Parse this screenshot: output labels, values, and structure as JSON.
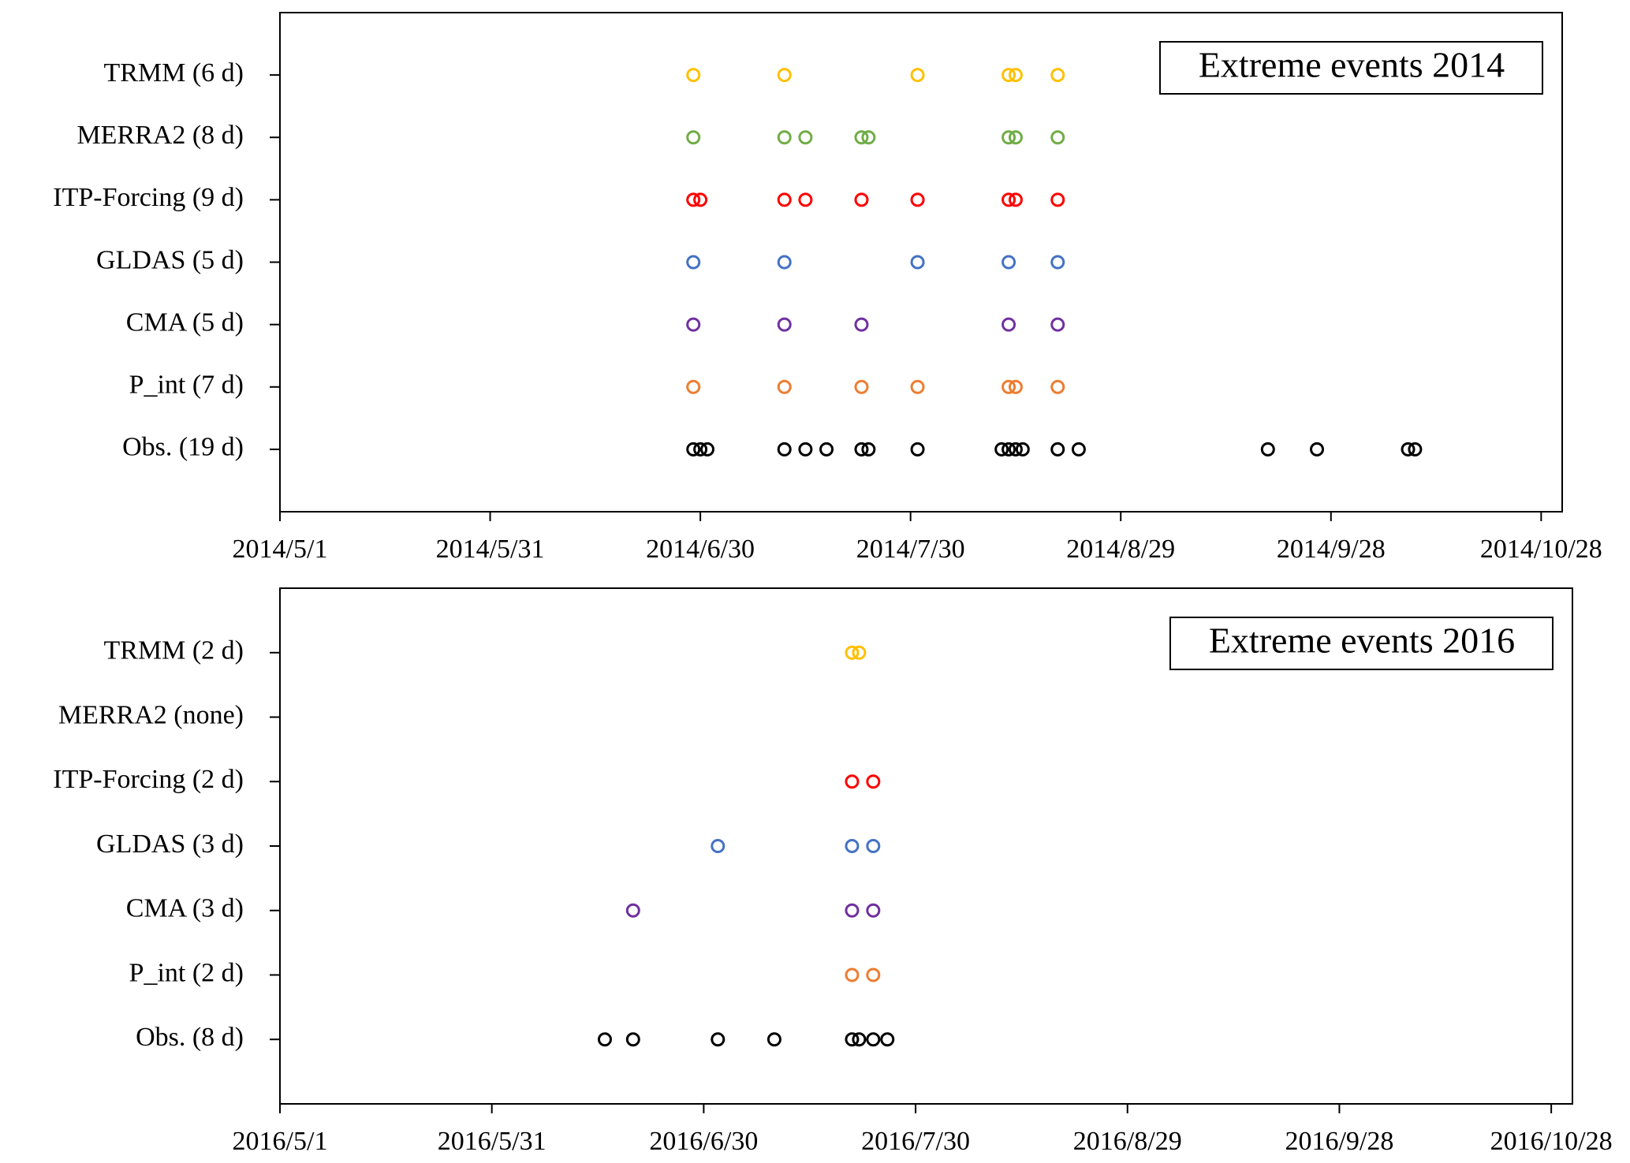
{
  "chart_data": [
    {
      "type": "scatter",
      "annotation": "Extreme events 2014",
      "xlim": [
        "2014/5/1",
        "2014/10/31"
      ],
      "xticks": [
        "2014/5/1",
        "2014/5/31",
        "2014/6/30",
        "2014/7/30",
        "2014/8/29",
        "2014/9/28",
        "2014/10/28"
      ],
      "series": [
        {
          "name": "TRMM (6 d)",
          "color": "#ffc000",
          "x": [
            "2014/6/29",
            "2014/7/12",
            "2014/7/31",
            "2014/8/13",
            "2014/8/14",
            "2014/8/20"
          ]
        },
        {
          "name": "MERRA2 (8 d)",
          "color": "#70ad47",
          "x": [
            "2014/6/29",
            "2014/7/12",
            "2014/7/15",
            "2014/7/23",
            "2014/7/24",
            "2014/8/13",
            "2014/8/14",
            "2014/8/20"
          ]
        },
        {
          "name": "ITP-Forcing (9 d)",
          "color": "#ff0000",
          "x": [
            "2014/6/29",
            "2014/6/30",
            "2014/7/12",
            "2014/7/15",
            "2014/7/23",
            "2014/7/31",
            "2014/8/13",
            "2014/8/14",
            "2014/8/20"
          ]
        },
        {
          "name": "GLDAS (5 d)",
          "color": "#4472c4",
          "x": [
            "2014/6/29",
            "2014/7/12",
            "2014/7/31",
            "2014/8/13",
            "2014/8/20"
          ]
        },
        {
          "name": "CMA (5 d)",
          "color": "#7030a0",
          "x": [
            "2014/6/29",
            "2014/7/12",
            "2014/7/23",
            "2014/8/13",
            "2014/8/20"
          ]
        },
        {
          "name": "P_int (7 d)",
          "color": "#ed7d31",
          "x": [
            "2014/6/29",
            "2014/7/12",
            "2014/7/23",
            "2014/7/31",
            "2014/8/13",
            "2014/8/14",
            "2014/8/20"
          ]
        },
        {
          "name": "Obs. (19 d)",
          "color": "#000000",
          "x": [
            "2014/6/29",
            "2014/6/30",
            "2014/7/1",
            "2014/7/12",
            "2014/7/15",
            "2014/7/18",
            "2014/7/23",
            "2014/7/24",
            "2014/7/31",
            "2014/8/12",
            "2014/8/13",
            "2014/8/14",
            "2014/8/15",
            "2014/8/20",
            "2014/8/23",
            "2014/9/19",
            "2014/9/26",
            "2014/10/9",
            "2014/10/10"
          ]
        }
      ]
    },
    {
      "type": "scatter",
      "annotation": "Extreme events 2016",
      "xlim": [
        "2016/5/1",
        "2016/10/31"
      ],
      "xticks": [
        "2016/5/1",
        "2016/5/31",
        "2016/6/30",
        "2016/7/30",
        "2016/8/29",
        "2016/9/28",
        "2016/10/28"
      ],
      "series": [
        {
          "name": "TRMM (2 d)",
          "color": "#ffc000",
          "x": [
            "2016/7/21",
            "2016/7/22"
          ]
        },
        {
          "name": "MERRA2 (none)",
          "color": "#70ad47",
          "x": []
        },
        {
          "name": "ITP-Forcing (2 d)",
          "color": "#ff0000",
          "x": [
            "2016/7/21",
            "2016/7/24"
          ]
        },
        {
          "name": "GLDAS (3 d)",
          "color": "#4472c4",
          "x": [
            "2016/7/2",
            "2016/7/21",
            "2016/7/24"
          ]
        },
        {
          "name": "CMA (3 d)",
          "color": "#7030a0",
          "x": [
            "2016/6/20",
            "2016/7/21",
            "2016/7/24"
          ]
        },
        {
          "name": "P_int (2 d)",
          "color": "#ed7d31",
          "x": [
            "2016/7/21",
            "2016/7/24"
          ]
        },
        {
          "name": "Obs. (8 d)",
          "color": "#000000",
          "x": [
            "2016/6/16",
            "2016/6/20",
            "2016/7/2",
            "2016/7/10",
            "2016/7/21",
            "2016/7/22",
            "2016/7/24",
            "2016/7/26"
          ]
        }
      ]
    }
  ]
}
